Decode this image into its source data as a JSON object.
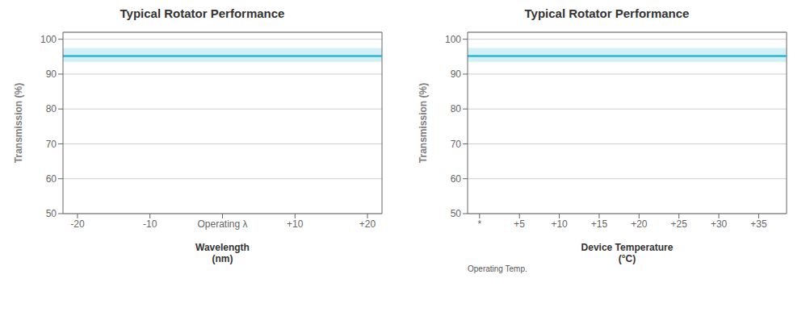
{
  "chart_data": [
    {
      "type": "line",
      "title": "Typical Rotator Performance",
      "x_label": "Wavelength\n(nm)",
      "y_label": "Transmission  (%)",
      "x": [
        -22,
        22
      ],
      "values": [
        95.2,
        95.2
      ],
      "band": {
        "lower": [
          93.5,
          93.5
        ],
        "upper": [
          97.5,
          97.5
        ]
      },
      "color": "#29b6d6",
      "xlim": [
        -22,
        22
      ],
      "xticks": [
        -20,
        -10,
        {
          "value": 0,
          "label": "Operating λ"
        },
        {
          "value": 10,
          "label": "+10"
        },
        {
          "value": 20,
          "label": "+20"
        }
      ],
      "ylim": [
        50,
        102
      ],
      "yticks": [
        50,
        60,
        70,
        80,
        90,
        100
      ],
      "grid": true
    },
    {
      "type": "line",
      "title": "Typical Rotator Performance",
      "x_label": "Device Temperature\n(°C)",
      "y_label": "Transmission  (%)",
      "x": [
        -1.5,
        38.5
      ],
      "values": [
        95.2,
        95.2
      ],
      "band": {
        "lower": [
          93.5,
          93.5
        ],
        "upper": [
          97.5,
          97.5
        ]
      },
      "color": "#29b6d6",
      "xlim": [
        -1.5,
        38.5
      ],
      "xticks": [
        {
          "value": 0,
          "label": "*"
        },
        {
          "value": 5,
          "label": "+5"
        },
        {
          "value": 10,
          "label": "+10"
        },
        {
          "value": 15,
          "label": "+15"
        },
        {
          "value": 20,
          "label": "+20"
        },
        {
          "value": 25,
          "label": "+25"
        },
        {
          "value": 30,
          "label": "+30"
        },
        {
          "value": 35,
          "label": "+35"
        }
      ],
      "ylim": [
        50,
        102
      ],
      "yticks": [
        50,
        60,
        70,
        80,
        90,
        100
      ],
      "grid": true,
      "annotations": [
        "Operating Temp."
      ]
    }
  ]
}
